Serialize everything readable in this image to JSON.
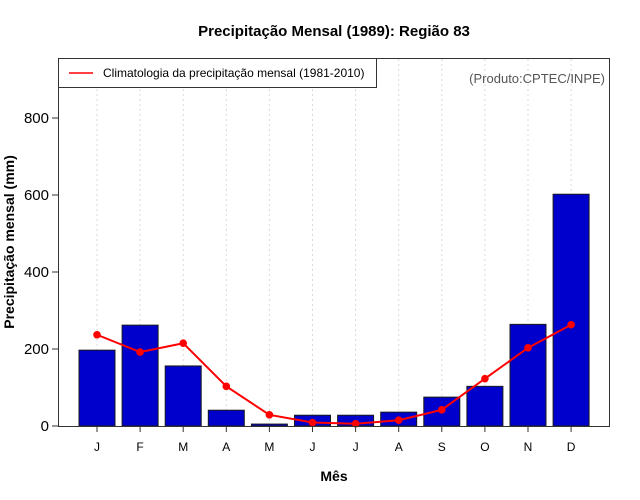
{
  "chart_data": {
    "type": "bar",
    "title": "Precipitação Mensal (1989): Região 83",
    "xlabel": "Mês",
    "ylabel": "Precipitação mensal (mm)",
    "categories": [
      "J",
      "F",
      "M",
      "A",
      "M",
      "J",
      "J",
      "A",
      "S",
      "O",
      "N",
      "D"
    ],
    "ylim": [
      0,
      950
    ],
    "yticks": [
      0,
      200,
      400,
      600,
      800
    ],
    "grid": "vertical-dotted",
    "series": [
      {
        "name": "Precipitação mensal (1989)",
        "type": "bar",
        "color": "#0000cc",
        "values": [
          197,
          262,
          156,
          41,
          5,
          28,
          28,
          36,
          75,
          103,
          264,
          602
        ]
      },
      {
        "name": "Climatologia da precipitação mensal (1981-2010)",
        "type": "line",
        "color": "#ff0000",
        "values": [
          237,
          192,
          215,
          103,
          29,
          9,
          6,
          15,
          42,
          123,
          203,
          263
        ]
      }
    ],
    "legend": {
      "placement": "top-left",
      "entries": [
        "Climatologia da precipitação mensal (1981-2010)"
      ]
    },
    "annotation": "(Produto:CPTEC/INPE)"
  }
}
